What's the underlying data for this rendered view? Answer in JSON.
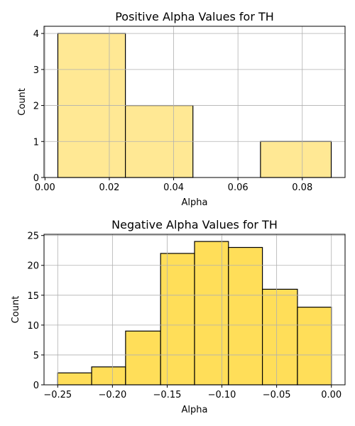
{
  "chart_data": [
    {
      "type": "bar",
      "title": "Positive Alpha Values for TH",
      "xlabel": "Alpha",
      "ylabel": "Count",
      "bins": [
        {
          "start": 0.004,
          "end": 0.025,
          "count": 4
        },
        {
          "start": 0.025,
          "end": 0.046,
          "count": 2
        },
        {
          "start": 0.046,
          "end": 0.067,
          "count": 0
        },
        {
          "start": 0.067,
          "end": 0.089,
          "count": 1
        }
      ],
      "xlim": [
        -0.0003,
        0.0933
      ],
      "ylim": [
        0,
        4.2
      ],
      "xticks": [
        {
          "value": 0.0,
          "label": "0.00"
        },
        {
          "value": 0.02,
          "label": "0.02"
        },
        {
          "value": 0.04,
          "label": "0.04"
        },
        {
          "value": 0.06,
          "label": "0.06"
        },
        {
          "value": 0.08,
          "label": "0.08"
        }
      ],
      "yticks": [
        {
          "value": 0,
          "label": "0"
        },
        {
          "value": 1,
          "label": "1"
        },
        {
          "value": 2,
          "label": "2"
        },
        {
          "value": 3,
          "label": "3"
        },
        {
          "value": 4,
          "label": "4"
        }
      ],
      "grid": true,
      "bar_color": "#ffe894",
      "edge_color": "#000000"
    },
    {
      "type": "bar",
      "title": "Negative Alpha Values for TH",
      "xlabel": "Alpha",
      "ylabel": "Count",
      "bins": [
        {
          "start": -0.25,
          "end": -0.219,
          "count": 2
        },
        {
          "start": -0.219,
          "end": -0.188,
          "count": 3
        },
        {
          "start": -0.188,
          "end": -0.156,
          "count": 9
        },
        {
          "start": -0.156,
          "end": -0.125,
          "count": 22
        },
        {
          "start": -0.125,
          "end": -0.094,
          "count": 24
        },
        {
          "start": -0.094,
          "end": -0.063,
          "count": 23
        },
        {
          "start": -0.063,
          "end": -0.031,
          "count": 16
        },
        {
          "start": -0.031,
          "end": 0.0,
          "count": 13
        }
      ],
      "xlim": [
        -0.2625,
        0.0125
      ],
      "ylim": [
        0,
        25.2
      ],
      "xticks": [
        {
          "value": -0.25,
          "label": "−0.25"
        },
        {
          "value": -0.2,
          "label": "−0.20"
        },
        {
          "value": -0.15,
          "label": "−0.15"
        },
        {
          "value": -0.1,
          "label": "−0.10"
        },
        {
          "value": -0.05,
          "label": "−0.05"
        },
        {
          "value": 0.0,
          "label": "0.00"
        }
      ],
      "yticks": [
        {
          "value": 0,
          "label": "0"
        },
        {
          "value": 5,
          "label": "5"
        },
        {
          "value": 10,
          "label": "10"
        },
        {
          "value": 15,
          "label": "15"
        },
        {
          "value": 20,
          "label": "20"
        },
        {
          "value": 25,
          "label": "25"
        }
      ],
      "grid": true,
      "bar_color": "#ffde59",
      "edge_color": "#000000"
    }
  ]
}
